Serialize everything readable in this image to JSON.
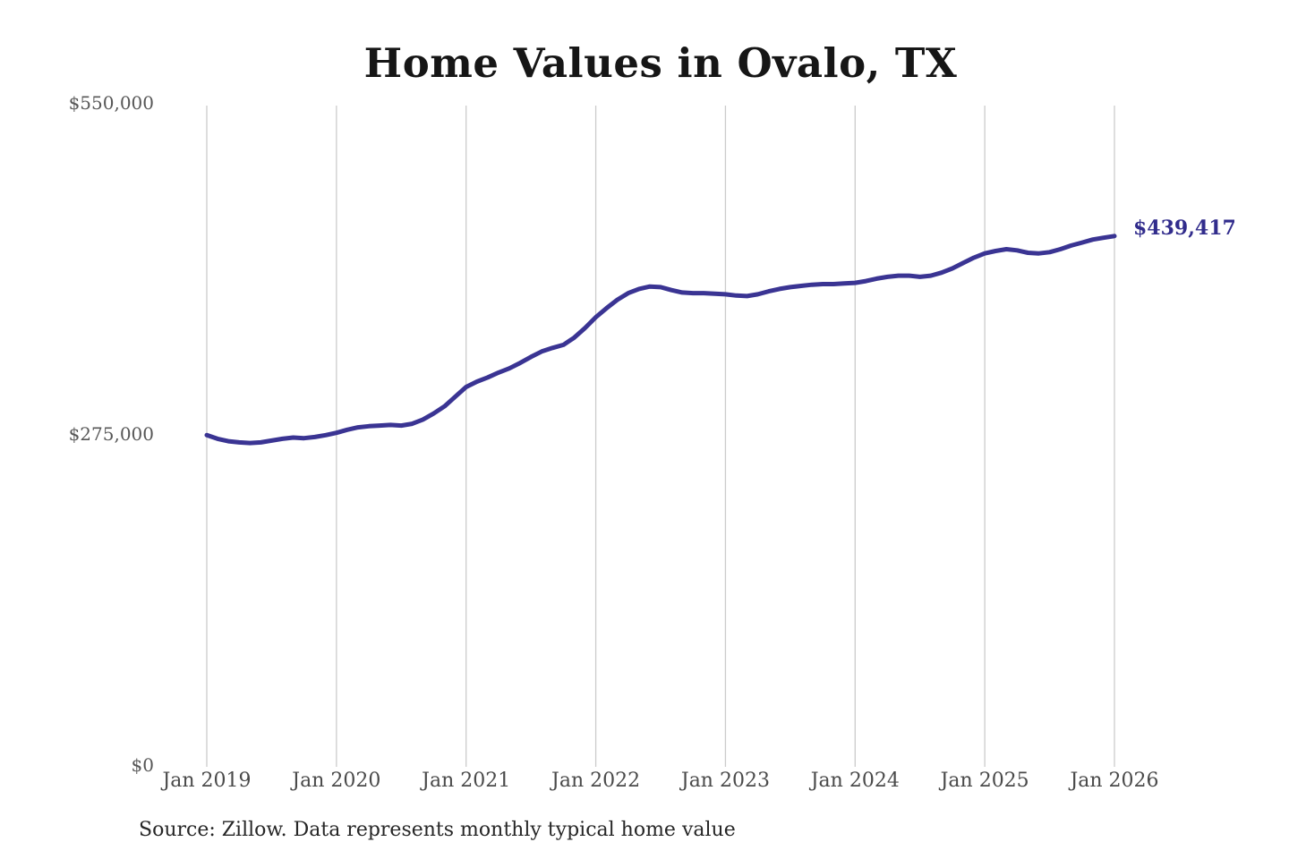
{
  "chart": {
    "title": "Home Values in Ovalo, TX",
    "source": "Source: Zillow. Data represents monthly typical home value",
    "end_label": "$439,417",
    "colors": {
      "line": "#3a3493",
      "annotation": "#312c8c",
      "grid": "#cbcbcb",
      "title": "#161616",
      "y_axis_label": "#575757",
      "x_axis_label": "#4a4a4a",
      "source_text": "#262626",
      "background": "#ffffff"
    }
  },
  "chart_data": {
    "type": "line",
    "title": "Home Values in Ovalo, TX",
    "xlabel": "",
    "ylabel": "",
    "ylim": [
      0,
      550000
    ],
    "grid": "vertical-only",
    "legend": "none",
    "interval": "monthly",
    "x_range": [
      "Jan 2019",
      "Jan 2026"
    ],
    "x_tick_labels": [
      "Jan 2019",
      "Jan 2020",
      "Jan 2021",
      "Jan 2022",
      "Jan 2023",
      "Jan 2024",
      "Jan 2025",
      "Jan 2026"
    ],
    "y_ticks": [
      {
        "value": 0,
        "label": "$0"
      },
      {
        "value": 275000,
        "label": "$275,000"
      },
      {
        "value": 550000,
        "label": "$550,000"
      }
    ],
    "end_value": 439417,
    "end_value_label": "$439,417",
    "series": [
      {
        "name": "Monthly typical home value",
        "start": "Jan 2019",
        "values": [
          274000,
          271000,
          269000,
          268000,
          267500,
          268000,
          269500,
          271000,
          272000,
          271500,
          272500,
          274000,
          276000,
          278500,
          280500,
          281500,
          282000,
          282500,
          282000,
          283500,
          287000,
          292000,
          298000,
          306000,
          314000,
          318500,
          322000,
          326000,
          329500,
          334000,
          339000,
          343500,
          346500,
          349000,
          355000,
          363000,
          372000,
          379500,
          386500,
          392000,
          395500,
          397500,
          397000,
          394500,
          392500,
          392000,
          392000,
          391500,
          391000,
          390000,
          389500,
          391000,
          393500,
          395500,
          397000,
          398000,
          399000,
          399500,
          399500,
          400000,
          400500,
          402000,
          404000,
          405500,
          406500,
          406500,
          405500,
          406500,
          409000,
          412500,
          417000,
          421500,
          425000,
          427000,
          428500,
          427500,
          425500,
          425000,
          426000,
          428500,
          431500,
          434000,
          436500,
          438000,
          439417
        ]
      }
    ]
  }
}
